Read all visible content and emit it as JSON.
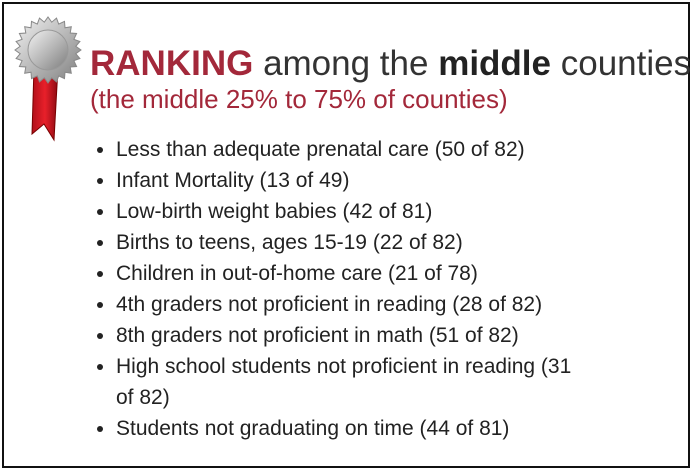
{
  "title": [
    "RANKING",
    "among the",
    "middle",
    "counties"
  ],
  "subtitle": "(the middle 25% to 75% of counties)",
  "items": [
    "Less than adequate prenatal care (50 of 82)",
    "Infant Mortality (13 of 49)",
    "Low-birth weight babies (42 of 81)",
    "Births to teens, ages 15-19 (22 of 82)",
    "Children in out-of-home care (21 of 78)",
    "4th graders not proficient in reading (28 of 82)",
    "8th graders not proficient in math (51 of 82)",
    "High school students not proficient in reading (31 of 82)",
    "Students not graduating on time (44 of 81)"
  ]
}
